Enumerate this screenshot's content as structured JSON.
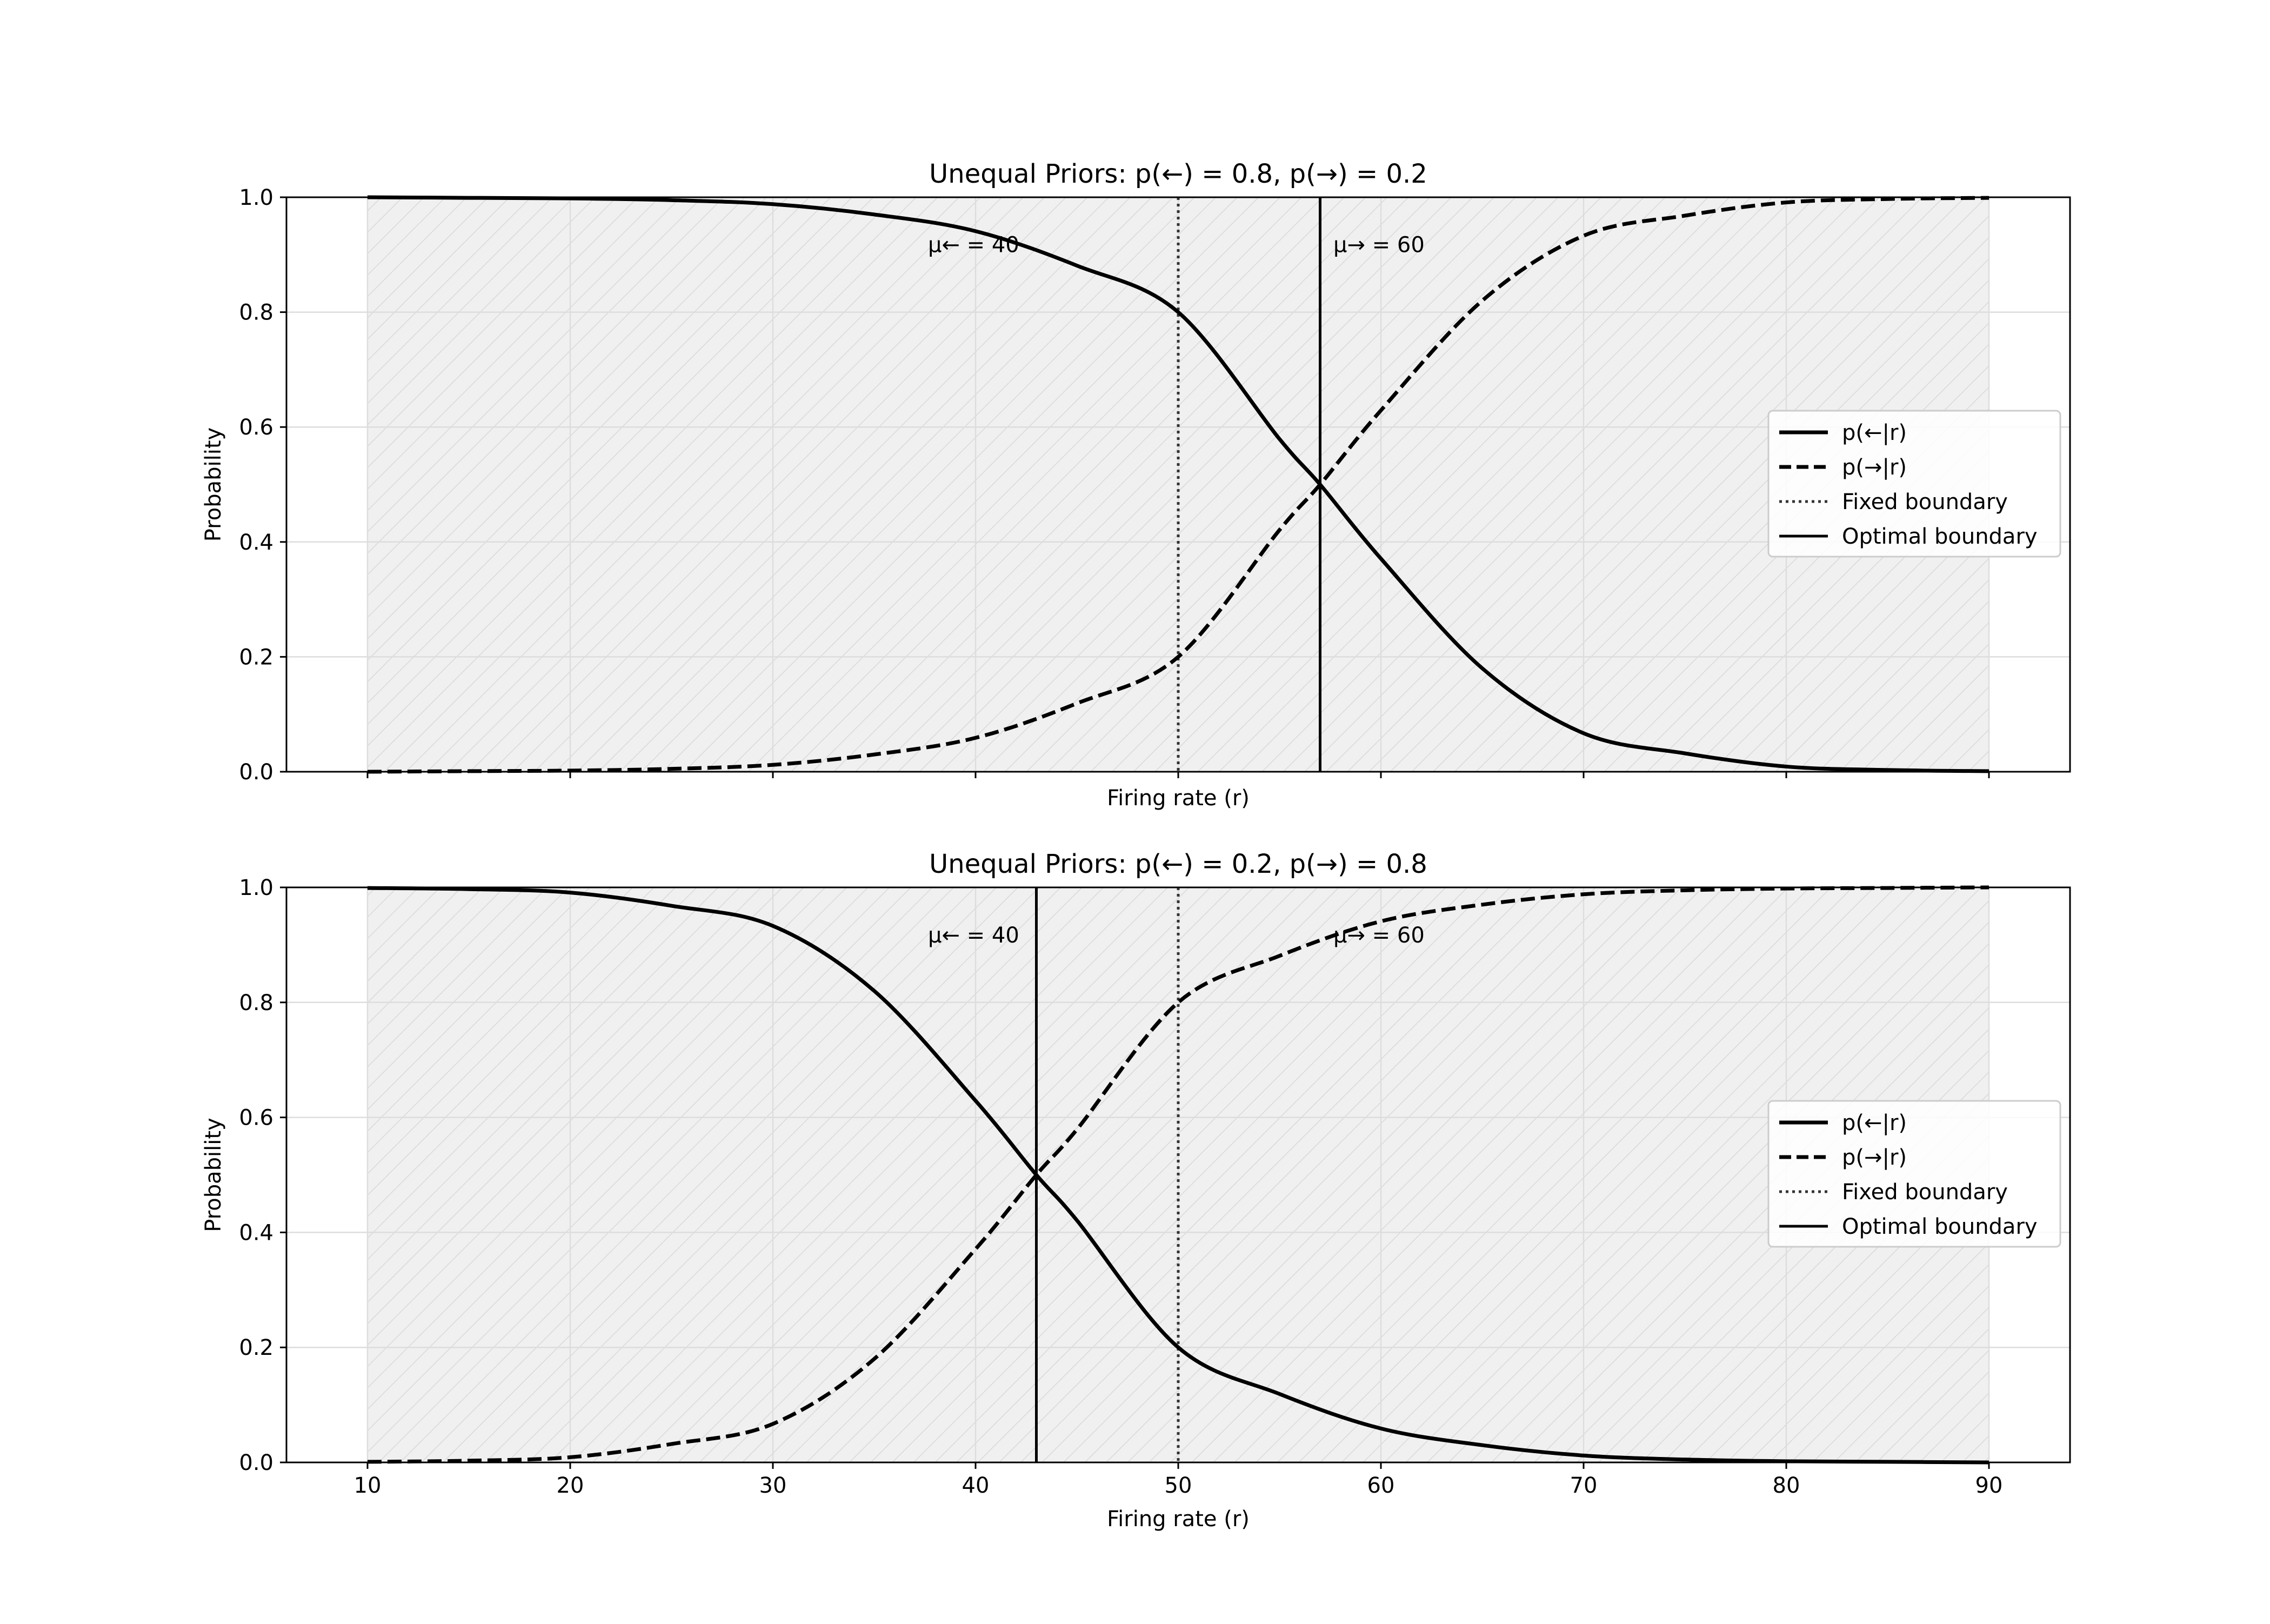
{
  "chart_data": [
    {
      "type": "line",
      "title": "Unequal Priors: p(←) = 0.8, p(→) = 0.2",
      "xlabel": "Firing rate (r)",
      "ylabel": "Probability",
      "xlim": [
        6,
        94
      ],
      "ylim": [
        0.0,
        1.0
      ],
      "x_tick_values": [
        10,
        20,
        30,
        40,
        50,
        60,
        70,
        80,
        90
      ],
      "x_tick_labels": [
        "",
        "",
        "",
        "",
        "",
        "",
        "",
        "",
        ""
      ],
      "y_tick_values": [
        0.0,
        0.2,
        0.4,
        0.6,
        0.8,
        1.0
      ],
      "y_tick_labels": [
        "0.0",
        "0.2",
        "0.4",
        "0.6",
        "0.8",
        "1.0"
      ],
      "grid": true,
      "shaded_region": [
        10,
        90
      ],
      "series": [
        {
          "name": "p(←|r)",
          "style": "solid",
          "x": [
            10,
            15,
            20,
            25,
            30,
            35,
            40,
            45,
            50,
            55,
            57,
            60,
            65,
            70,
            75,
            80,
            85,
            90
          ],
          "values": [
            1.0,
            0.999,
            0.998,
            0.995,
            0.988,
            0.97,
            0.941,
            0.881,
            0.8,
            0.579,
            0.5,
            0.371,
            0.18,
            0.067,
            0.032,
            0.009,
            0.003,
            0.001
          ]
        },
        {
          "name": "p(→|r)",
          "style": "dashed",
          "x": [
            10,
            15,
            20,
            25,
            30,
            35,
            40,
            45,
            50,
            55,
            57,
            60,
            65,
            70,
            75,
            80,
            85,
            90
          ],
          "values": [
            0.0,
            0.001,
            0.002,
            0.005,
            0.012,
            0.03,
            0.059,
            0.119,
            0.2,
            0.421,
            0.5,
            0.629,
            0.82,
            0.933,
            0.968,
            0.991,
            0.997,
            0.999
          ]
        }
      ],
      "vlines": [
        {
          "name": "Fixed boundary",
          "x": 50,
          "style": "dotted"
        },
        {
          "name": "Optimal boundary",
          "x": 57,
          "style": "solid"
        }
      ],
      "annotations": [
        {
          "text": "μ← = 40",
          "x": 40,
          "y": 0.91
        },
        {
          "text": "μ→ = 60",
          "x": 60,
          "y": 0.91
        }
      ],
      "legend": {
        "placement": "center-right",
        "entries": [
          "p(←|r)",
          "p(→|r)",
          "Fixed boundary",
          "Optimal boundary"
        ]
      }
    },
    {
      "type": "line",
      "title": "Unequal Priors: p(←) = 0.2, p(→) = 0.8",
      "xlabel": "Firing rate (r)",
      "ylabel": "Probability",
      "xlim": [
        6,
        94
      ],
      "ylim": [
        0.0,
        1.0
      ],
      "x_tick_values": [
        10,
        20,
        30,
        40,
        50,
        60,
        70,
        80,
        90
      ],
      "x_tick_labels": [
        "10",
        "20",
        "30",
        "40",
        "50",
        "60",
        "70",
        "80",
        "90"
      ],
      "y_tick_values": [
        0.0,
        0.2,
        0.4,
        0.6,
        0.8,
        1.0
      ],
      "y_tick_labels": [
        "0.0",
        "0.2",
        "0.4",
        "0.6",
        "0.8",
        "1.0"
      ],
      "grid": true,
      "shaded_region": [
        10,
        90
      ],
      "series": [
        {
          "name": "p(←|r)",
          "style": "solid",
          "x": [
            10,
            15,
            20,
            25,
            30,
            35,
            40,
            43,
            45,
            50,
            55,
            60,
            65,
            70,
            75,
            80,
            85,
            90
          ],
          "values": [
            0.999,
            0.997,
            0.991,
            0.968,
            0.933,
            0.82,
            0.629,
            0.5,
            0.421,
            0.2,
            0.119,
            0.059,
            0.03,
            0.012,
            0.005,
            0.002,
            0.001,
            0.0
          ]
        },
        {
          "name": "p(→|r)",
          "style": "dashed",
          "x": [
            10,
            15,
            20,
            25,
            30,
            35,
            40,
            43,
            45,
            50,
            55,
            60,
            65,
            70,
            75,
            80,
            85,
            90
          ],
          "values": [
            0.001,
            0.003,
            0.009,
            0.032,
            0.067,
            0.18,
            0.371,
            0.5,
            0.579,
            0.8,
            0.881,
            0.941,
            0.97,
            0.988,
            0.995,
            0.998,
            0.999,
            1.0
          ]
        }
      ],
      "vlines": [
        {
          "name": "Fixed boundary",
          "x": 50,
          "style": "dotted"
        },
        {
          "name": "Optimal boundary",
          "x": 43,
          "style": "solid"
        }
      ],
      "annotations": [
        {
          "text": "μ← = 40",
          "x": 40,
          "y": 0.91
        },
        {
          "text": "μ→ = 60",
          "x": 60,
          "y": 0.91
        }
      ],
      "legend": {
        "placement": "center-right",
        "entries": [
          "p(←|r)",
          "p(→|r)",
          "Fixed boundary",
          "Optimal boundary"
        ]
      }
    }
  ]
}
